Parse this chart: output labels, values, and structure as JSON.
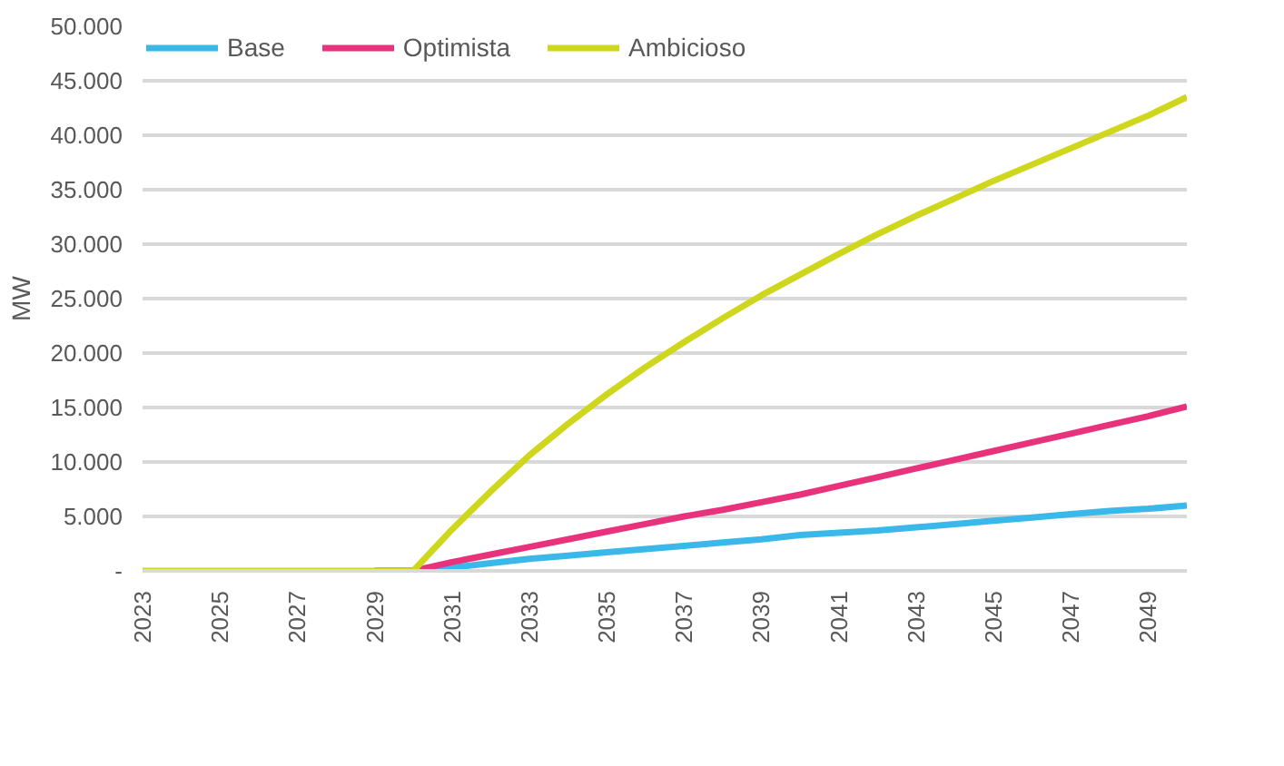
{
  "chart_data": {
    "type": "line",
    "ylabel": "MW",
    "x": [
      2023,
      2024,
      2025,
      2026,
      2027,
      2028,
      2029,
      2030,
      2031,
      2032,
      2033,
      2034,
      2035,
      2036,
      2037,
      2038,
      2039,
      2040,
      2041,
      2042,
      2043,
      2044,
      2045,
      2046,
      2047,
      2048,
      2049,
      2050
    ],
    "series": [
      {
        "name": "Base",
        "color": "#3bb8ea",
        "values": [
          null,
          null,
          null,
          null,
          null,
          null,
          0,
          0,
          300,
          700,
          1100,
          1400,
          1700,
          2000,
          2300,
          2600,
          2900,
          3300,
          3500,
          3700,
          4000,
          4300,
          4600,
          4900,
          5200,
          5500,
          5700,
          6000
        ]
      },
      {
        "name": "Optimista",
        "color": "#e8327c",
        "values": [
          null,
          null,
          null,
          null,
          null,
          null,
          0,
          0,
          800,
          1500,
          2200,
          2900,
          3600,
          4300,
          5000,
          5600,
          6300,
          7000,
          7800,
          8600,
          9400,
          10200,
          11000,
          11800,
          12600,
          13400,
          14200,
          15100
        ]
      },
      {
        "name": "Ambicioso",
        "color": "#cfd71c",
        "values": [
          0,
          0,
          0,
          0,
          0,
          0,
          0,
          0,
          3800,
          7300,
          10600,
          13500,
          16200,
          18700,
          21000,
          23200,
          25300,
          27200,
          29100,
          30900,
          32600,
          34200,
          35800,
          37300,
          38800,
          40300,
          41800,
          43500
        ]
      }
    ],
    "xlim": [
      2023,
      2050
    ],
    "xticks": [
      2023,
      2025,
      2027,
      2029,
      2031,
      2033,
      2035,
      2037,
      2039,
      2041,
      2043,
      2045,
      2047,
      2049
    ],
    "ylim": [
      0,
      50000
    ],
    "yticks": [
      {
        "value": 0,
        "label": "-"
      },
      {
        "value": 5000,
        "label": "5.000"
      },
      {
        "value": 10000,
        "label": "10.000"
      },
      {
        "value": 15000,
        "label": "15.000"
      },
      {
        "value": 20000,
        "label": "20.000"
      },
      {
        "value": 25000,
        "label": "25.000"
      },
      {
        "value": 30000,
        "label": "30.000"
      },
      {
        "value": 35000,
        "label": "35.000"
      },
      {
        "value": 40000,
        "label": "40.000"
      },
      {
        "value": 45000,
        "label": "45.000"
      },
      {
        "value": 50000,
        "label": "50.000"
      }
    ],
    "grid": "y",
    "legend": "top left",
    "marker": "none",
    "line_style": "solid"
  }
}
